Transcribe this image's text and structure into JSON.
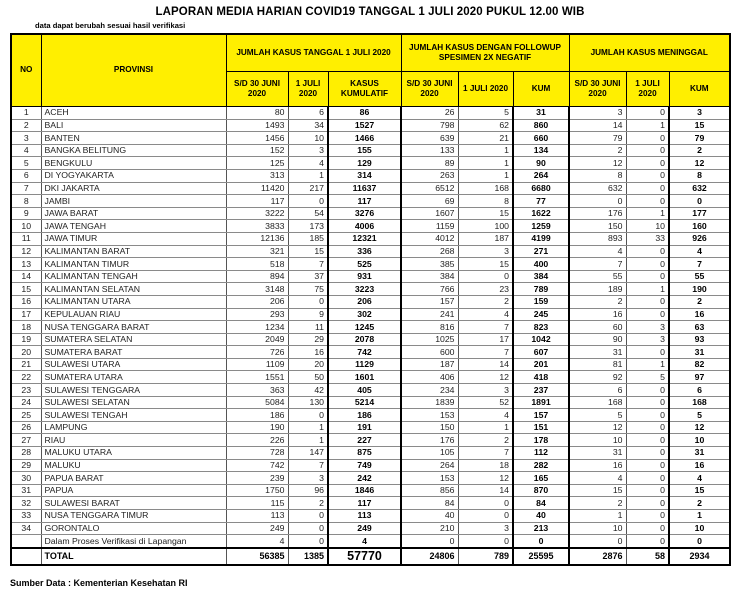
{
  "title": "LAPORAN MEDIA HARIAN COVID19 TANGGAL 1 JULI 2020 PUKUL 12.00 WIB",
  "note": "data dapat berubah sesuai hasil verifikasi",
  "source": "Sumber Data : Kementerian Kesehatan RI",
  "colors": {
    "header_bg": "#ffef00",
    "border": "#000000"
  },
  "table": {
    "headers": {
      "no": "NO",
      "provinsi": "PROVINSI",
      "groups": [
        "JUMLAH KASUS TANGGAL 1 JULI 2020",
        "JUMLAH KASUS DENGAN FOLLOWUP SPESIMEN 2X NEGATIF",
        "JUMLAH KASUS MENINGGAL"
      ],
      "subs": [
        "S/D 30 JUNI 2020",
        "1 JULI 2020",
        "KASUS KUMULATIF",
        "S/D 30 JUNI 2020",
        "1 JULI 2020",
        "KUM",
        "S/D 30 JUNI 2020",
        "1 JULI 2020",
        "KUM"
      ]
    },
    "rows": [
      {
        "no": "1",
        "provinsi": "ACEH",
        "values": [
          80,
          6,
          86,
          26,
          5,
          31,
          3,
          0,
          3
        ]
      },
      {
        "no": "2",
        "provinsi": "BALI",
        "values": [
          1493,
          34,
          1527,
          798,
          62,
          860,
          14,
          1,
          15
        ]
      },
      {
        "no": "3",
        "provinsi": "BANTEN",
        "values": [
          1456,
          10,
          1466,
          639,
          21,
          660,
          79,
          0,
          79
        ]
      },
      {
        "no": "4",
        "provinsi": "BANGKA BELITUNG",
        "values": [
          152,
          3,
          155,
          133,
          1,
          134,
          2,
          0,
          2
        ]
      },
      {
        "no": "5",
        "provinsi": "BENGKULU",
        "values": [
          125,
          4,
          129,
          89,
          1,
          90,
          12,
          0,
          12
        ]
      },
      {
        "no": "6",
        "provinsi": "DI YOGYAKARTA",
        "values": [
          313,
          1,
          314,
          263,
          1,
          264,
          8,
          0,
          8
        ]
      },
      {
        "no": "7",
        "provinsi": "DKI JAKARTA",
        "values": [
          11420,
          217,
          11637,
          6512,
          168,
          6680,
          632,
          0,
          632
        ]
      },
      {
        "no": "8",
        "provinsi": "JAMBI",
        "values": [
          117,
          0,
          117,
          69,
          8,
          77,
          0,
          0,
          0
        ]
      },
      {
        "no": "9",
        "provinsi": "JAWA BARAT",
        "values": [
          3222,
          54,
          3276,
          1607,
          15,
          1622,
          176,
          1,
          177
        ]
      },
      {
        "no": "10",
        "provinsi": "JAWA TENGAH",
        "values": [
          3833,
          173,
          4006,
          1159,
          100,
          1259,
          150,
          10,
          160
        ]
      },
      {
        "no": "11",
        "provinsi": "JAWA TIMUR",
        "values": [
          12136,
          185,
          12321,
          4012,
          187,
          4199,
          893,
          33,
          926
        ]
      },
      {
        "no": "12",
        "provinsi": "KALIMANTAN BARAT",
        "values": [
          321,
          15,
          336,
          268,
          3,
          271,
          4,
          0,
          4
        ]
      },
      {
        "no": "13",
        "provinsi": "KALIMANTAN TIMUR",
        "values": [
          518,
          7,
          525,
          385,
          15,
          400,
          7,
          0,
          7
        ]
      },
      {
        "no": "14",
        "provinsi": "KALIMANTAN TENGAH",
        "values": [
          894,
          37,
          931,
          384,
          0,
          384,
          55,
          0,
          55
        ]
      },
      {
        "no": "15",
        "provinsi": "KALIMANTAN SELATAN",
        "values": [
          3148,
          75,
          3223,
          766,
          23,
          789,
          189,
          1,
          190
        ]
      },
      {
        "no": "16",
        "provinsi": "KALIMANTAN UTARA",
        "values": [
          206,
          0,
          206,
          157,
          2,
          159,
          2,
          0,
          2
        ]
      },
      {
        "no": "17",
        "provinsi": "KEPULAUAN RIAU",
        "values": [
          293,
          9,
          302,
          241,
          4,
          245,
          16,
          0,
          16
        ]
      },
      {
        "no": "18",
        "provinsi": "NUSA TENGGARA BARAT",
        "values": [
          1234,
          11,
          1245,
          816,
          7,
          823,
          60,
          3,
          63
        ]
      },
      {
        "no": "19",
        "provinsi": "SUMATERA SELATAN",
        "values": [
          2049,
          29,
          2078,
          1025,
          17,
          1042,
          90,
          3,
          93
        ]
      },
      {
        "no": "20",
        "provinsi": "SUMATERA BARAT",
        "values": [
          726,
          16,
          742,
          600,
          7,
          607,
          31,
          0,
          31
        ]
      },
      {
        "no": "21",
        "provinsi": "SULAWESI UTARA",
        "values": [
          1109,
          20,
          1129,
          187,
          14,
          201,
          81,
          1,
          82
        ]
      },
      {
        "no": "22",
        "provinsi": "SUMATERA UTARA",
        "values": [
          1551,
          50,
          1601,
          406,
          12,
          418,
          92,
          5,
          97
        ]
      },
      {
        "no": "23",
        "provinsi": "SULAWESI TENGGARA",
        "values": [
          363,
          42,
          405,
          234,
          3,
          237,
          6,
          0,
          6
        ]
      },
      {
        "no": "24",
        "provinsi": "SULAWESI SELATAN",
        "values": [
          5084,
          130,
          5214,
          1839,
          52,
          1891,
          168,
          0,
          168
        ]
      },
      {
        "no": "25",
        "provinsi": "SULAWESI TENGAH",
        "values": [
          186,
          0,
          186,
          153,
          4,
          157,
          5,
          0,
          5
        ]
      },
      {
        "no": "26",
        "provinsi": "LAMPUNG",
        "values": [
          190,
          1,
          191,
          150,
          1,
          151,
          12,
          0,
          12
        ]
      },
      {
        "no": "27",
        "provinsi": "RIAU",
        "values": [
          226,
          1,
          227,
          176,
          2,
          178,
          10,
          0,
          10
        ]
      },
      {
        "no": "28",
        "provinsi": "MALUKU UTARA",
        "values": [
          728,
          147,
          875,
          105,
          7,
          112,
          31,
          0,
          31
        ]
      },
      {
        "no": "29",
        "provinsi": "MALUKU",
        "values": [
          742,
          7,
          749,
          264,
          18,
          282,
          16,
          0,
          16
        ]
      },
      {
        "no": "30",
        "provinsi": "PAPUA BARAT",
        "values": [
          239,
          3,
          242,
          153,
          12,
          165,
          4,
          0,
          4
        ]
      },
      {
        "no": "31",
        "provinsi": "PAPUA",
        "values": [
          1750,
          96,
          1846,
          856,
          14,
          870,
          15,
          0,
          15
        ]
      },
      {
        "no": "32",
        "provinsi": "SULAWESI BARAT",
        "values": [
          115,
          2,
          117,
          84,
          0,
          84,
          2,
          0,
          2
        ]
      },
      {
        "no": "33",
        "provinsi": "NUSA TENGGARA TIMUR",
        "values": [
          113,
          0,
          113,
          40,
          0,
          40,
          1,
          0,
          1
        ]
      },
      {
        "no": "34",
        "provinsi": "GORONTALO",
        "values": [
          249,
          0,
          249,
          210,
          3,
          213,
          10,
          0,
          10
        ]
      },
      {
        "no": "",
        "provinsi": "Dalam Proses Verifikasi di Lapangan",
        "values": [
          4,
          0,
          4,
          0,
          0,
          0,
          0,
          0,
          0
        ]
      }
    ],
    "total": {
      "no": "",
      "label": "TOTAL",
      "values": [
        56385,
        1385,
        57770,
        24806,
        789,
        25595,
        2876,
        58,
        2934
      ]
    }
  }
}
